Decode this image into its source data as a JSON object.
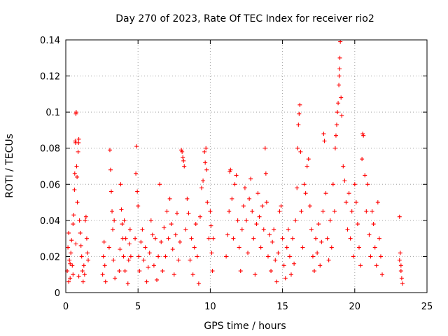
{
  "chart_data": {
    "type": "scatter",
    "title": "Day 270 of 2023, Rate Of TEC Index for receiver rio2",
    "xlabel": "GPS time / hours",
    "ylabel": "ROTI / TECUs",
    "xlim": [
      0,
      25
    ],
    "ylim": [
      0,
      0.14
    ],
    "xticks": [
      0,
      5,
      10,
      15,
      20,
      25
    ],
    "xtick_labels": [
      "0",
      "5",
      "10",
      "15",
      "20",
      "25"
    ],
    "yticks": [
      0,
      0.02,
      0.04,
      0.06,
      0.08,
      0.1,
      0.12,
      0.14
    ],
    "ytick_labels": [
      "0",
      "0.02",
      "0.04",
      "0.06",
      "0.08",
      "0.1",
      "0.12",
      "0.14"
    ],
    "grid": true,
    "marker": "plus",
    "series_color": "#ff0000",
    "series": [
      {
        "name": "ROTI",
        "points": [
          [
            0.1,
            0.012
          ],
          [
            0.15,
            0.025
          ],
          [
            0.2,
            0.033
          ],
          [
            0.25,
            0.018
          ],
          [
            0.3,
            0.008
          ],
          [
            0.35,
            0.022
          ],
          [
            0.4,
            0.029
          ],
          [
            0.45,
            0.015
          ],
          [
            0.5,
            0.038
          ],
          [
            0.55,
            0.043
          ],
          [
            0.6,
            0.057
          ],
          [
            0.62,
            0.066
          ],
          [
            0.65,
            0.084
          ],
          [
            0.68,
            0.083
          ],
          [
            0.7,
            0.099
          ],
          [
            0.72,
            0.1
          ],
          [
            0.75,
            0.07
          ],
          [
            0.78,
            0.064
          ],
          [
            0.8,
            0.05
          ],
          [
            0.85,
            0.078
          ],
          [
            0.88,
            0.083
          ],
          [
            0.9,
            0.085
          ],
          [
            0.95,
            0.04
          ],
          [
            1.0,
            0.033
          ],
          [
            1.05,
            0.026
          ],
          [
            1.1,
            0.02
          ],
          [
            1.15,
            0.012
          ],
          [
            1.2,
            0.006
          ],
          [
            1.25,
            0.015
          ],
          [
            1.3,
            0.01
          ],
          [
            1.35,
            0.04
          ],
          [
            1.4,
            0.042
          ],
          [
            1.45,
            0.03
          ],
          [
            1.5,
            0.022
          ],
          [
            1.55,
            0.018
          ],
          [
            0.2,
            0.006
          ],
          [
            0.3,
            0.016
          ],
          [
            0.5,
            0.01
          ],
          [
            0.7,
            0.027
          ],
          [
            0.9,
            0.009
          ],
          [
            2.55,
            0.01
          ],
          [
            2.6,
            0.02
          ],
          [
            2.65,
            0.028
          ],
          [
            2.7,
            0.015
          ],
          [
            2.75,
            0.006
          ],
          [
            3.0,
            0.025
          ],
          [
            3.05,
            0.079
          ],
          [
            3.1,
            0.068
          ],
          [
            3.15,
            0.056
          ],
          [
            3.2,
            0.045
          ],
          [
            3.25,
            0.035
          ],
          [
            3.3,
            0.018
          ],
          [
            3.35,
            0.04
          ],
          [
            3.4,
            0.008
          ],
          [
            3.7,
            0.012
          ],
          [
            3.75,
            0.024
          ],
          [
            3.8,
            0.06
          ],
          [
            3.85,
            0.046
          ],
          [
            3.9,
            0.038
          ],
          [
            3.95,
            0.03
          ],
          [
            4.0,
            0.02
          ],
          [
            4.05,
            0.04
          ],
          [
            4.1,
            0.012
          ],
          [
            4.15,
            0.03
          ],
          [
            4.3,
            0.005
          ],
          [
            4.35,
            0.018
          ],
          [
            4.4,
            0.027
          ],
          [
            4.45,
            0.035
          ],
          [
            4.5,
            0.02
          ],
          [
            4.8,
            0.03
          ],
          [
            4.85,
            0.066
          ],
          [
            4.9,
            0.081
          ],
          [
            4.95,
            0.056
          ],
          [
            5.0,
            0.048
          ],
          [
            5.05,
            0.02
          ],
          [
            5.1,
            0.012
          ],
          [
            5.2,
            0.028
          ],
          [
            5.3,
            0.035
          ],
          [
            5.4,
            0.018
          ],
          [
            5.5,
            0.025
          ],
          [
            5.6,
            0.006
          ],
          [
            5.7,
            0.014
          ],
          [
            5.8,
            0.022
          ],
          [
            5.9,
            0.04
          ],
          [
            6.0,
            0.032
          ],
          [
            6.1,
            0.015
          ],
          [
            6.2,
            0.03
          ],
          [
            6.3,
            0.007
          ],
          [
            6.4,
            0.02
          ],
          [
            6.5,
            0.06
          ],
          [
            6.6,
            0.028
          ],
          [
            6.7,
            0.012
          ],
          [
            6.8,
            0.036
          ],
          [
            6.9,
            0.02
          ],
          [
            7.0,
            0.045
          ],
          [
            7.1,
            0.03
          ],
          [
            7.2,
            0.052
          ],
          [
            7.3,
            0.038
          ],
          [
            7.4,
            0.024
          ],
          [
            7.5,
            0.01
          ],
          [
            7.6,
            0.032
          ],
          [
            7.7,
            0.044
          ],
          [
            7.8,
            0.018
          ],
          [
            7.9,
            0.028
          ],
          [
            8.0,
            0.079
          ],
          [
            8.05,
            0.078
          ],
          [
            8.1,
            0.075
          ],
          [
            8.15,
            0.073
          ],
          [
            8.2,
            0.07
          ],
          [
            8.3,
            0.035
          ],
          [
            8.4,
            0.052
          ],
          [
            8.5,
            0.044
          ],
          [
            8.6,
            0.018
          ],
          [
            8.7,
            0.03
          ],
          [
            8.8,
            0.01
          ],
          [
            8.9,
            0.025
          ],
          [
            9.0,
            0.038
          ],
          [
            9.1,
            0.02
          ],
          [
            9.2,
            0.005
          ],
          [
            9.3,
            0.042
          ],
          [
            9.4,
            0.058
          ],
          [
            9.5,
            0.062
          ],
          [
            9.6,
            0.078
          ],
          [
            9.65,
            0.072
          ],
          [
            9.7,
            0.08
          ],
          [
            9.75,
            0.068
          ],
          [
            9.8,
            0.05
          ],
          [
            9.9,
            0.03
          ],
          [
            10.0,
            0.045
          ],
          [
            10.05,
            0.037
          ],
          [
            10.1,
            0.022
          ],
          [
            10.15,
            0.012
          ],
          [
            10.2,
            0.03
          ],
          [
            11.1,
            0.02
          ],
          [
            11.2,
            0.032
          ],
          [
            11.3,
            0.045
          ],
          [
            11.35,
            0.067
          ],
          [
            11.4,
            0.068
          ],
          [
            11.5,
            0.052
          ],
          [
            11.6,
            0.03
          ],
          [
            11.7,
            0.06
          ],
          [
            11.8,
            0.065
          ],
          [
            11.9,
            0.04
          ],
          [
            12.0,
            0.025
          ],
          [
            12.1,
            0.012
          ],
          [
            12.2,
            0.035
          ],
          [
            12.3,
            0.048
          ],
          [
            12.4,
            0.058
          ],
          [
            12.5,
            0.04
          ],
          [
            12.6,
            0.022
          ],
          [
            12.7,
            0.052
          ],
          [
            12.8,
            0.063
          ],
          [
            12.9,
            0.045
          ],
          [
            13.0,
            0.03
          ],
          [
            13.1,
            0.01
          ],
          [
            13.2,
            0.038
          ],
          [
            13.3,
            0.055
          ],
          [
            13.4,
            0.042
          ],
          [
            13.5,
            0.025
          ],
          [
            13.6,
            0.048
          ],
          [
            13.7,
            0.035
          ],
          [
            13.8,
            0.08
          ],
          [
            13.85,
            0.066
          ],
          [
            13.9,
            0.05
          ],
          [
            14.0,
            0.02
          ],
          [
            14.1,
            0.032
          ],
          [
            14.2,
            0.012
          ],
          [
            14.3,
            0.028
          ],
          [
            14.4,
            0.035
          ],
          [
            14.5,
            0.018
          ],
          [
            14.6,
            0.006
          ],
          [
            14.7,
            0.022
          ],
          [
            14.8,
            0.045
          ],
          [
            14.9,
            0.048
          ],
          [
            15.0,
            0.03
          ],
          [
            15.1,
            0.015
          ],
          [
            15.2,
            0.008
          ],
          [
            15.3,
            0.025
          ],
          [
            15.4,
            0.035
          ],
          [
            15.5,
            0.02
          ],
          [
            15.6,
            0.01
          ],
          [
            15.7,
            0.03
          ],
          [
            15.8,
            0.016
          ],
          [
            15.9,
            0.04
          ],
          [
            16.0,
            0.058
          ],
          [
            16.05,
            0.08
          ],
          [
            16.1,
            0.093
          ],
          [
            16.15,
            0.099
          ],
          [
            16.2,
            0.104
          ],
          [
            16.25,
            0.078
          ],
          [
            16.3,
            0.045
          ],
          [
            16.4,
            0.025
          ],
          [
            16.5,
            0.06
          ],
          [
            16.6,
            0.055
          ],
          [
            16.7,
            0.07
          ],
          [
            16.8,
            0.074
          ],
          [
            16.9,
            0.048
          ],
          [
            17.0,
            0.035
          ],
          [
            17.1,
            0.02
          ],
          [
            17.2,
            0.012
          ],
          [
            17.3,
            0.03
          ],
          [
            17.4,
            0.022
          ],
          [
            17.5,
            0.038
          ],
          [
            17.6,
            0.015
          ],
          [
            17.7,
            0.028
          ],
          [
            17.8,
            0.045
          ],
          [
            17.85,
            0.088
          ],
          [
            17.9,
            0.084
          ],
          [
            18.0,
            0.055
          ],
          [
            18.1,
            0.03
          ],
          [
            18.2,
            0.018
          ],
          [
            18.3,
            0.04
          ],
          [
            18.4,
            0.025
          ],
          [
            18.5,
            0.06
          ],
          [
            18.6,
            0.045
          ],
          [
            18.65,
            0.08
          ],
          [
            18.7,
            0.087
          ],
          [
            18.75,
            0.093
          ],
          [
            18.8,
            0.1
          ],
          [
            18.85,
            0.105
          ],
          [
            18.9,
            0.115
          ],
          [
            18.92,
            0.12
          ],
          [
            18.95,
            0.124
          ],
          [
            18.97,
            0.13
          ],
          [
            19.0,
            0.139
          ],
          [
            19.05,
            0.108
          ],
          [
            19.1,
            0.098
          ],
          [
            19.2,
            0.07
          ],
          [
            19.3,
            0.062
          ],
          [
            19.4,
            0.05
          ],
          [
            19.5,
            0.035
          ],
          [
            19.6,
            0.055
          ],
          [
            19.7,
            0.03
          ],
          [
            19.8,
            0.045
          ],
          [
            19.9,
            0.02
          ],
          [
            20.0,
            0.06
          ],
          [
            20.1,
            0.05
          ],
          [
            20.2,
            0.038
          ],
          [
            20.3,
            0.025
          ],
          [
            20.4,
            0.015
          ],
          [
            20.5,
            0.074
          ],
          [
            20.55,
            0.088
          ],
          [
            20.6,
            0.087
          ],
          [
            20.7,
            0.065
          ],
          [
            20.8,
            0.045
          ],
          [
            20.9,
            0.06
          ],
          [
            21.0,
            0.032
          ],
          [
            21.1,
            0.02
          ],
          [
            21.2,
            0.045
          ],
          [
            21.3,
            0.038
          ],
          [
            21.4,
            0.025
          ],
          [
            21.5,
            0.015
          ],
          [
            21.6,
            0.05
          ],
          [
            21.7,
            0.03
          ],
          [
            21.8,
            0.02
          ],
          [
            21.9,
            0.01
          ],
          [
            23.1,
            0.042
          ],
          [
            23.15,
            0.022
          ],
          [
            23.2,
            0.015
          ],
          [
            23.25,
            0.008
          ],
          [
            23.3,
            0.005
          ],
          [
            23.2,
            0.012
          ],
          [
            23.1,
            0.018
          ]
        ]
      }
    ]
  }
}
